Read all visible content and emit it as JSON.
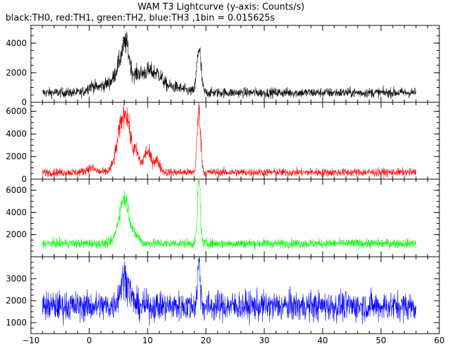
{
  "title": "WAM T3 Lightcurve (y-axis: Counts/s)",
  "subtitle": "black:TH0, red:TH1, green:TH2, blue:TH3 ,1bin = 0.015625s",
  "chart_data": [
    {
      "type": "line",
      "series": [
        {
          "name": "TH0",
          "color": "#000000"
        }
      ],
      "xlim": [
        -10,
        60
      ],
      "ylim": [
        0,
        5200
      ],
      "yticks": [
        0,
        2000,
        4000
      ],
      "ytick_labels": [
        "0",
        "2000",
        "4000"
      ],
      "baseline": 650,
      "noise": 240,
      "x_range": [
        -8,
        56
      ],
      "features": [
        {
          "x": 0.3,
          "width": 0.7,
          "height": 400
        },
        {
          "x": 2.8,
          "width": 1.2,
          "height": 500
        },
        {
          "x": 5.8,
          "width": 1.1,
          "height": 2400
        },
        {
          "x": 6.4,
          "width": 0.5,
          "height": 1200
        },
        {
          "x": 8.3,
          "width": 0.7,
          "height": 900
        },
        {
          "x": 10.0,
          "width": 0.9,
          "height": 1300
        },
        {
          "x": 11.8,
          "width": 0.8,
          "height": 900
        },
        {
          "x": 14.0,
          "width": 2.0,
          "height": 400
        },
        {
          "x": 18.8,
          "width": 0.35,
          "height": 3000
        }
      ]
    },
    {
      "type": "line",
      "series": [
        {
          "name": "TH1",
          "color": "#ff0000"
        }
      ],
      "xlim": [
        -10,
        60
      ],
      "ylim": [
        0,
        6800
      ],
      "yticks": [
        0,
        2000,
        4000,
        6000
      ],
      "ytick_labels": [
        "0",
        "2000",
        "4000",
        "6000"
      ],
      "baseline": 600,
      "noise": 260,
      "x_range": [
        -8,
        56
      ],
      "features": [
        {
          "x": 0.2,
          "width": 0.8,
          "height": 350
        },
        {
          "x": 5.9,
          "width": 1.0,
          "height": 4800
        },
        {
          "x": 6.6,
          "width": 0.5,
          "height": 1000
        },
        {
          "x": 8.1,
          "width": 0.5,
          "height": 1400
        },
        {
          "x": 9.9,
          "width": 0.6,
          "height": 1800
        },
        {
          "x": 11.5,
          "width": 0.6,
          "height": 1000
        },
        {
          "x": 18.8,
          "width": 0.3,
          "height": 5400
        }
      ]
    },
    {
      "type": "line",
      "series": [
        {
          "name": "TH2",
          "color": "#00ff00"
        }
      ],
      "xlim": [
        -10,
        60
      ],
      "ylim": [
        0,
        7000
      ],
      "yticks": [
        2000,
        4000,
        6000
      ],
      "ytick_labels": [
        "2000",
        "4000",
        "6000"
      ],
      "baseline": 1200,
      "noise": 300,
      "x_range": [
        -8,
        56
      ],
      "features": [
        {
          "x": 6.0,
          "width": 0.9,
          "height": 4100
        },
        {
          "x": 8.2,
          "width": 0.5,
          "height": 500
        },
        {
          "x": 18.8,
          "width": 0.25,
          "height": 5700
        }
      ]
    },
    {
      "type": "line",
      "series": [
        {
          "name": "TH3",
          "color": "#0000ff"
        }
      ],
      "xlim": [
        -10,
        60
      ],
      "ylim": [
        500,
        4000
      ],
      "yticks": [
        1000,
        2000,
        3000
      ],
      "ytick_labels": [
        "1000",
        "2000",
        "3000"
      ],
      "baseline": 1750,
      "noise": 480,
      "x_range": [
        -8,
        56
      ],
      "features": [
        {
          "x": 6.1,
          "width": 0.8,
          "height": 1300
        },
        {
          "x": 18.8,
          "width": 0.25,
          "height": 1900
        }
      ]
    }
  ],
  "x_axis": {
    "xlim": [
      -10,
      60
    ],
    "ticks": [
      -10,
      0,
      10,
      20,
      30,
      40,
      50,
      60
    ],
    "tick_labels": [
      "−10",
      "0",
      "10",
      "20",
      "30",
      "40",
      "50",
      "60"
    ],
    "minor_step": 2
  }
}
